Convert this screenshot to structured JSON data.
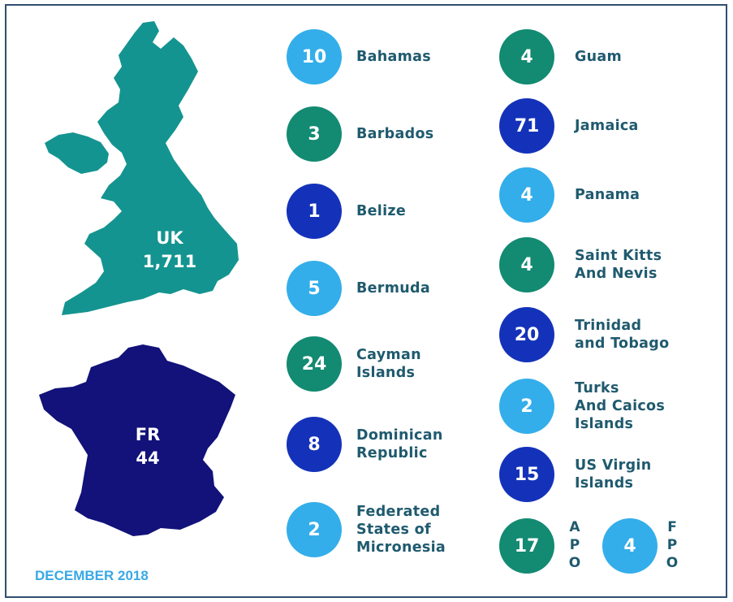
{
  "colors": {
    "uk_map": "#149490",
    "fr_map": "#12127a",
    "light_blue": "#33aeea",
    "teal": "#138a72",
    "navy": "#1432b9",
    "label_text": "#1f5a6e",
    "date_text": "#38a9e5"
  },
  "maps": {
    "uk": {
      "code": "UK",
      "value": "1,711"
    },
    "fr": {
      "code": "FR",
      "value": "44"
    }
  },
  "date_label": "DECEMBER 2018",
  "left_column": [
    {
      "value": "10",
      "label": "Bahamas",
      "color": "light_blue"
    },
    {
      "value": "3",
      "label": "Barbados",
      "color": "teal"
    },
    {
      "value": "1",
      "label": "Belize",
      "color": "navy"
    },
    {
      "value": "5",
      "label": "Bermuda",
      "color": "light_blue"
    },
    {
      "value": "24",
      "label": "Cayman\nIslands",
      "color": "teal"
    },
    {
      "value": "8",
      "label": "Dominican\nRepublic",
      "color": "navy"
    },
    {
      "value": "2",
      "label": "Federated\nStates of\nMicronesia",
      "color": "light_blue"
    }
  ],
  "right_column": [
    {
      "value": "4",
      "label": "Guam",
      "color": "teal"
    },
    {
      "value": "71",
      "label": "Jamaica",
      "color": "navy"
    },
    {
      "value": "4",
      "label": "Panama",
      "color": "light_blue"
    },
    {
      "value": "4",
      "label": "Saint Kitts\nAnd Nevis",
      "color": "teal"
    },
    {
      "value": "20",
      "label": "Trinidad\nand Tobago",
      "color": "navy"
    },
    {
      "value": "2",
      "label": "Turks\nAnd Caicos\nIslands",
      "color": "light_blue"
    },
    {
      "value": "15",
      "label": "US Virgin\nIslands",
      "color": "navy"
    }
  ],
  "bottom_pair": [
    {
      "value": "17",
      "label": "A\nP\nO",
      "color": "teal"
    },
    {
      "value": "4",
      "label": "F\nP\nO",
      "color": "light_blue"
    }
  ]
}
